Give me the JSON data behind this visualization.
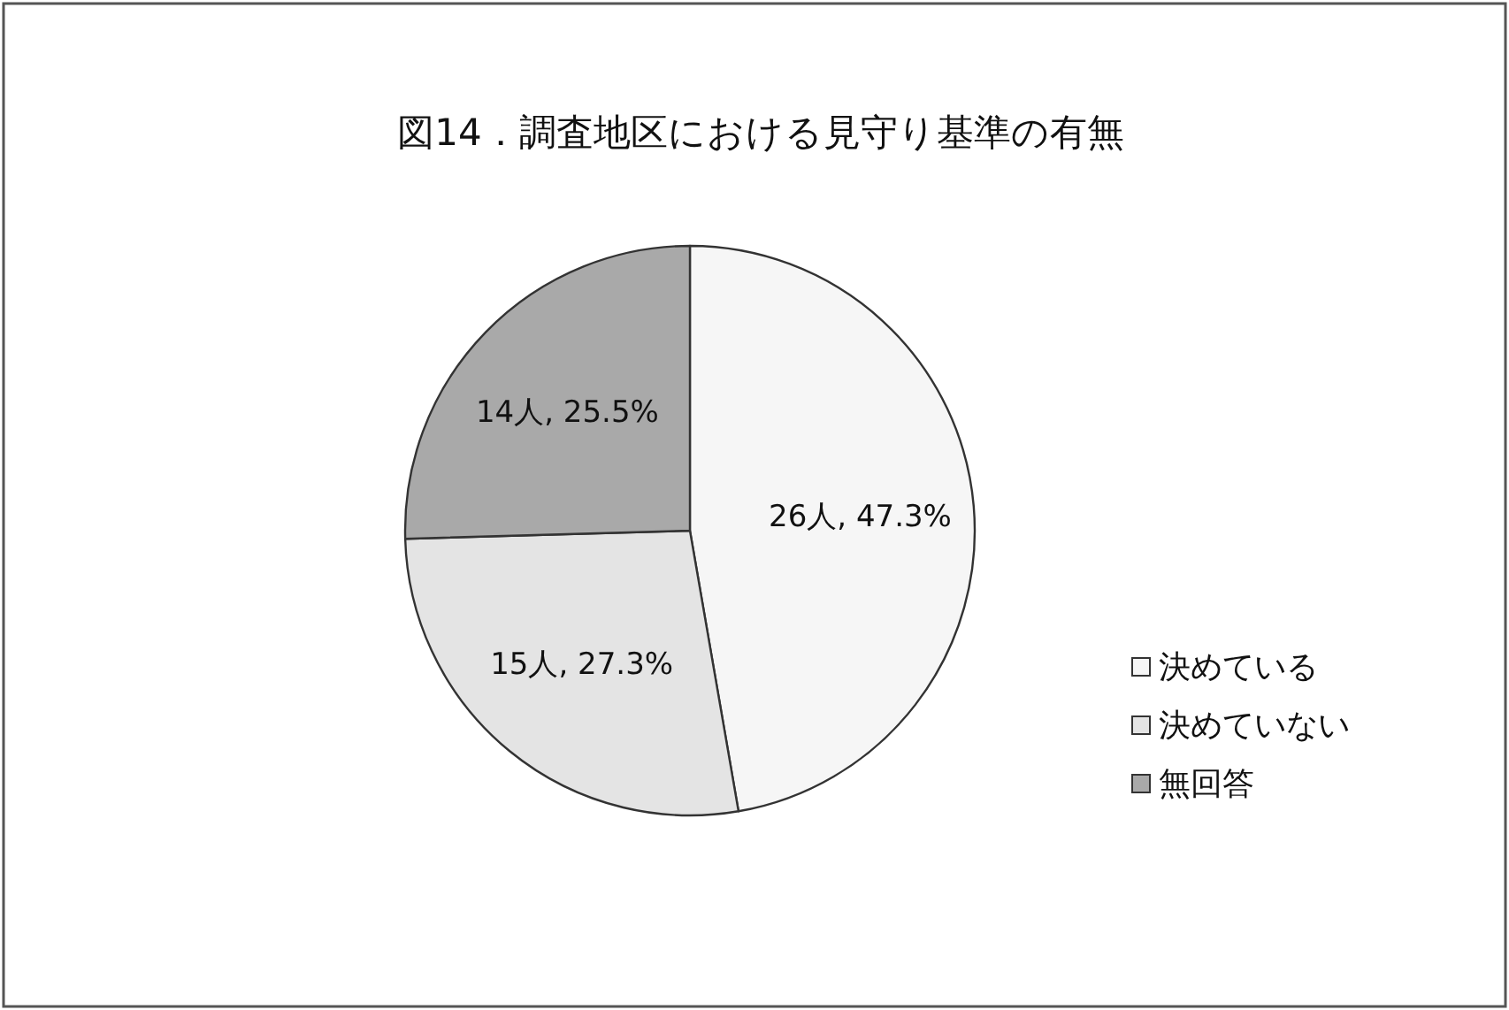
{
  "chart_data": {
    "type": "pie",
    "title": "図14．調査地区における見守り基準の有無",
    "categories": [
      "決めている",
      "決めていない",
      "無回答"
    ],
    "values": [
      26,
      15,
      14
    ],
    "value_labels": [
      "26人, 47.3%",
      "15人, 27.3%",
      "14人, 25.5%"
    ],
    "colors": [
      "#f6f6f6",
      "#e4e4e4",
      "#a9a9a9"
    ],
    "legend": "right"
  }
}
